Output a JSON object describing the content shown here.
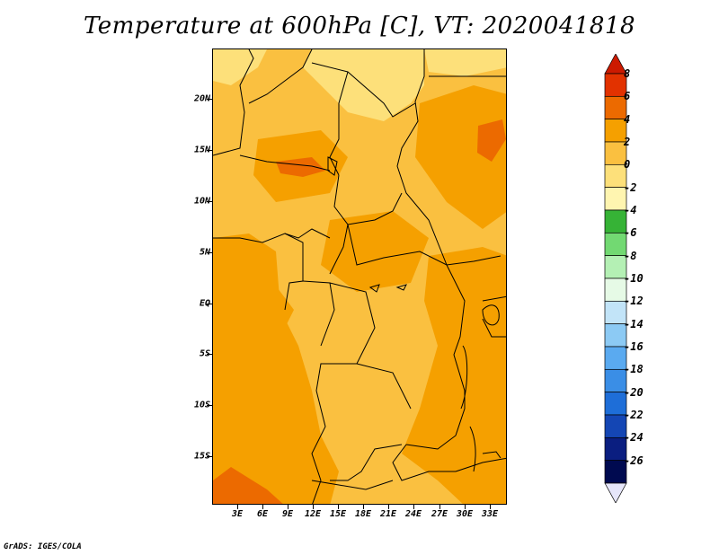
{
  "title": "Temperature at 600hPa [C], VT: 2020041818",
  "credit": "GrADS: IGES/COLA",
  "map": {
    "lat_labels": [
      "20N",
      "15N",
      "10N",
      "5N",
      "EQ",
      "5S",
      "10S",
      "15S"
    ],
    "lon_labels": [
      "3E",
      "6E",
      "9E",
      "12E",
      "15E",
      "18E",
      "21E",
      "24E",
      "27E",
      "30E",
      "33E"
    ]
  },
  "colorbar": {
    "labels": [
      "8",
      "6",
      "4",
      "2",
      "0",
      "-2",
      "-4",
      "-6",
      "-8",
      "-10",
      "-12",
      "-14",
      "-16",
      "-18",
      "-20",
      "-22",
      "-24",
      "-26"
    ],
    "colors": [
      "#cc1a00",
      "#e23200",
      "#ec6a00",
      "#f5a000",
      "#fac040",
      "#fde07a",
      "#fff5b0",
      "#36b336",
      "#72d972",
      "#b4f0b4",
      "#e6fae6",
      "#c2e4f8",
      "#8ccaf4",
      "#5aaaf0",
      "#3a8ee6",
      "#1e6ed8",
      "#1446b4",
      "#0a1e80",
      "#000a50",
      "#e6e6fa"
    ]
  },
  "colors": {
    "field_cool": "#fde07a",
    "field_mid": "#fac040",
    "field_warm": "#f5a000",
    "field_hot": "#ec6a00"
  }
}
